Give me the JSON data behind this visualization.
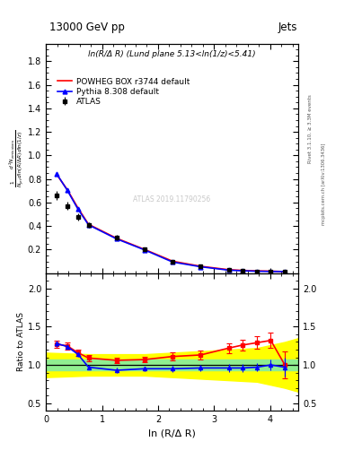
{
  "title_left": "13000 GeV pp",
  "title_right": "Jets",
  "subtitle": "ln(R/Δ R) (Lund plane 5.13<ln(1/z)<5.41)",
  "ylabel_main": "$\\frac{1}{N_{jet}}\\frac{d^2 N_{emissions}}{d\\ln(R/\\Delta R)\\,d\\ln(1/z)}$",
  "ylabel_ratio": "Ratio to ATLAS",
  "xlabel": "ln (R/Δ R)",
  "right_label1": "Rivet 3.1.10, ≥ 3.3M events",
  "right_label2": "mcplots.cern.ch [arXiv:1306.3436]",
  "watermark": "ATLAS 2019.11790256",
  "atlas_x": [
    0.19,
    0.38,
    0.57,
    0.76,
    1.26,
    1.76,
    2.26,
    2.76,
    3.26,
    3.51,
    3.76,
    4.01,
    4.26
  ],
  "atlas_y": [
    0.66,
    0.57,
    0.48,
    0.41,
    0.3,
    0.2,
    0.095,
    0.055,
    0.025,
    0.02,
    0.016,
    0.014,
    0.013
  ],
  "atlas_yerr": [
    0.04,
    0.035,
    0.03,
    0.025,
    0.022,
    0.015,
    0.01,
    0.007,
    0.004,
    0.003,
    0.003,
    0.002,
    0.002
  ],
  "powheg_x": [
    0.19,
    0.38,
    0.57,
    0.76,
    1.26,
    1.76,
    2.26,
    2.76,
    3.26,
    3.51,
    3.76,
    4.01,
    4.26
  ],
  "powheg_y": [
    0.84,
    0.71,
    0.555,
    0.415,
    0.296,
    0.201,
    0.101,
    0.058,
    0.029,
    0.023,
    0.019,
    0.017,
    0.013
  ],
  "pythia_x": [
    0.19,
    0.38,
    0.57,
    0.76,
    1.26,
    1.76,
    2.26,
    2.76,
    3.26,
    3.51,
    3.76,
    4.01,
    4.26
  ],
  "pythia_y": [
    0.845,
    0.705,
    0.545,
    0.41,
    0.291,
    0.197,
    0.094,
    0.054,
    0.025,
    0.02,
    0.016,
    0.014,
    0.013
  ],
  "ratio_powheg_y": [
    1.27,
    1.25,
    1.16,
    1.09,
    1.06,
    1.07,
    1.11,
    1.13,
    1.22,
    1.26,
    1.29,
    1.32,
    1.0
  ],
  "ratio_powheg_yerr": [
    0.05,
    0.045,
    0.04,
    0.04,
    0.04,
    0.04,
    0.05,
    0.055,
    0.065,
    0.07,
    0.08,
    0.1,
    0.18
  ],
  "ratio_pythia_y": [
    1.28,
    1.24,
    1.14,
    0.97,
    0.93,
    0.95,
    0.95,
    0.96,
    0.96,
    0.96,
    0.97,
    1.0,
    0.97
  ],
  "ratio_pythia_yerr": [
    0.04,
    0.03,
    0.03,
    0.03,
    0.03,
    0.03,
    0.04,
    0.04,
    0.05,
    0.05,
    0.05,
    0.07,
    0.12
  ],
  "green_band_x": [
    0.0,
    0.38,
    0.76,
    1.26,
    1.76,
    2.26,
    2.76,
    3.26,
    3.76,
    4.26,
    4.5
  ],
  "green_band_low": [
    0.93,
    0.93,
    0.93,
    0.93,
    0.93,
    0.93,
    0.93,
    0.93,
    0.93,
    0.93,
    0.93
  ],
  "green_band_high": [
    1.07,
    1.07,
    1.07,
    1.07,
    1.07,
    1.07,
    1.07,
    1.07,
    1.07,
    1.07,
    1.07
  ],
  "yellow_band_x": [
    0.0,
    0.38,
    0.76,
    1.26,
    1.76,
    2.26,
    2.76,
    3.26,
    3.76,
    4.26,
    4.5
  ],
  "yellow_band_low": [
    0.84,
    0.85,
    0.86,
    0.86,
    0.86,
    0.84,
    0.82,
    0.8,
    0.78,
    0.7,
    0.65
  ],
  "yellow_band_high": [
    1.16,
    1.15,
    1.14,
    1.14,
    1.14,
    1.16,
    1.18,
    1.2,
    1.22,
    1.3,
    1.35
  ],
  "xlim": [
    0,
    4.5
  ],
  "ylim_main": [
    0.0,
    1.95
  ],
  "ylim_ratio": [
    0.4,
    2.2
  ],
  "yticks_main": [
    0.2,
    0.4,
    0.6,
    0.8,
    1.0,
    1.2,
    1.4,
    1.6,
    1.8
  ],
  "yticks_ratio": [
    0.5,
    1.0,
    1.5,
    2.0
  ],
  "xticks": [
    0,
    1,
    2,
    3,
    4
  ],
  "bg_color": "#ffffff"
}
